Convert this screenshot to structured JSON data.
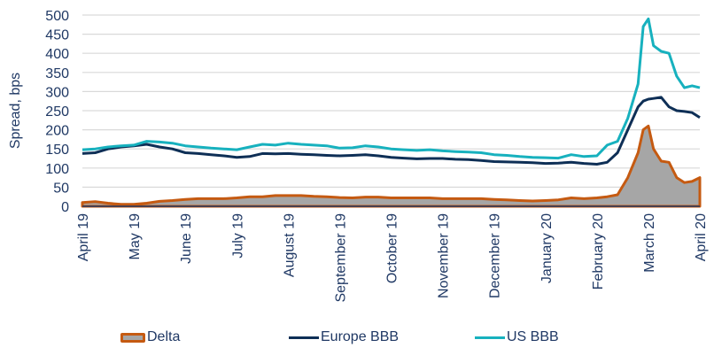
{
  "chart_data": {
    "type": "line",
    "title": "",
    "xlabel": "",
    "ylabel": "Spread, bps",
    "ylim": [
      0,
      500
    ],
    "yticks": [
      0,
      50,
      100,
      150,
      200,
      250,
      300,
      350,
      400,
      450,
      500
    ],
    "grid": true,
    "legend_position": "bottom",
    "x_tick_labels": [
      "April 19",
      "May 19",
      "June 19",
      "July 19",
      "August 19",
      "September 19",
      "October 19",
      "November 19",
      "December 19",
      "January 20",
      "February 20",
      "March 20",
      "April 20"
    ],
    "x_months_index": [
      0,
      1,
      2,
      3,
      4,
      5,
      6,
      7,
      8,
      9,
      10,
      11,
      12
    ],
    "x": [
      0,
      0.25,
      0.5,
      0.75,
      1,
      1.25,
      1.5,
      1.75,
      2,
      2.25,
      2.5,
      2.75,
      3,
      3.25,
      3.5,
      3.75,
      4,
      4.25,
      4.5,
      4.75,
      5,
      5.25,
      5.5,
      5.75,
      6,
      6.25,
      6.5,
      6.75,
      7,
      7.25,
      7.5,
      7.75,
      8,
      8.25,
      8.5,
      8.75,
      9,
      9.25,
      9.5,
      9.75,
      10,
      10.2,
      10.4,
      10.6,
      10.8,
      10.9,
      11,
      11.1,
      11.25,
      11.4,
      11.55,
      11.7,
      11.85,
      12
    ],
    "series": [
      {
        "name": "US BBB",
        "color": "#17b1be",
        "style": "line",
        "values": [
          148,
          150,
          155,
          158,
          160,
          170,
          168,
          165,
          158,
          155,
          152,
          150,
          148,
          155,
          162,
          160,
          165,
          162,
          160,
          158,
          152,
          153,
          158,
          155,
          150,
          148,
          146,
          148,
          145,
          143,
          142,
          140,
          135,
          133,
          130,
          128,
          127,
          126,
          135,
          130,
          132,
          160,
          170,
          230,
          320,
          470,
          490,
          420,
          405,
          400,
          340,
          310,
          315,
          310
        ]
      },
      {
        "name": "Europe BBB",
        "color": "#0e2f56",
        "style": "line",
        "values": [
          138,
          140,
          150,
          155,
          158,
          162,
          155,
          150,
          140,
          138,
          135,
          132,
          128,
          130,
          138,
          137,
          138,
          136,
          135,
          133,
          132,
          133,
          135,
          132,
          128,
          126,
          124,
          125,
          125,
          123,
          122,
          120,
          117,
          116,
          115,
          114,
          112,
          113,
          115,
          112,
          110,
          115,
          140,
          200,
          260,
          275,
          280,
          282,
          285,
          260,
          250,
          248,
          245,
          232
        ]
      },
      {
        "name": "Delta",
        "color": "#c55a11",
        "fill": "#a6a6a6",
        "style": "area",
        "values": [
          10,
          12,
          8,
          5,
          5,
          8,
          13,
          15,
          18,
          20,
          20,
          20,
          22,
          25,
          25,
          28,
          28,
          28,
          26,
          25,
          23,
          22,
          24,
          24,
          22,
          22,
          22,
          22,
          20,
          20,
          20,
          20,
          18,
          17,
          15,
          14,
          15,
          17,
          22,
          20,
          22,
          25,
          30,
          75,
          140,
          200,
          210,
          150,
          118,
          115,
          75,
          62,
          65,
          75
        ]
      }
    ]
  },
  "legend": {
    "items": [
      {
        "label": "Delta",
        "color": "#c55a11",
        "fill": "#a6a6a6",
        "kind": "area"
      },
      {
        "label": "Europe BBB",
        "color": "#0e2f56",
        "kind": "line"
      },
      {
        "label": "US BBB",
        "color": "#17b1be",
        "kind": "line"
      }
    ]
  }
}
